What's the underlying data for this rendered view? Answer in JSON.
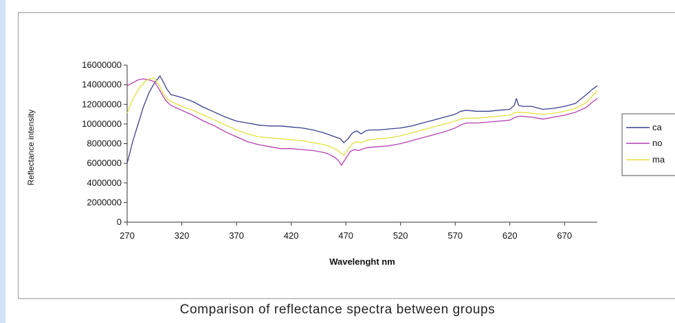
{
  "caption": "Comparison of reflectance spectra between groups",
  "chart_data": {
    "type": "line",
    "title": "",
    "xlabel": "Wavelenght nm",
    "ylabel": "Reflectance intensity",
    "xlim": [
      270,
      700
    ],
    "ylim": [
      0,
      16000000
    ],
    "x_ticks": [
      "270",
      "320",
      "370",
      "420",
      "470",
      "520",
      "570",
      "620",
      "670"
    ],
    "y_ticks": [
      "0",
      "2000000",
      "4000000",
      "6000000",
      "8000000",
      "10000000",
      "12000000",
      "14000000",
      "16000000"
    ],
    "grid": false,
    "legend": "right",
    "series": [
      {
        "name": "ca",
        "color": "#3b3f8c",
        "points": [
          [
            270,
            6000000
          ],
          [
            275,
            8200000
          ],
          [
            280,
            10000000
          ],
          [
            285,
            11800000
          ],
          [
            290,
            13200000
          ],
          [
            295,
            14200000
          ],
          [
            300,
            14900000
          ],
          [
            303,
            14300000
          ],
          [
            306,
            13600000
          ],
          [
            310,
            13000000
          ],
          [
            320,
            12700000
          ],
          [
            330,
            12300000
          ],
          [
            340,
            11700000
          ],
          [
            350,
            11200000
          ],
          [
            360,
            10700000
          ],
          [
            370,
            10300000
          ],
          [
            380,
            10100000
          ],
          [
            390,
            9900000
          ],
          [
            400,
            9800000
          ],
          [
            410,
            9800000
          ],
          [
            420,
            9700000
          ],
          [
            430,
            9600000
          ],
          [
            440,
            9400000
          ],
          [
            450,
            9100000
          ],
          [
            455,
            8900000
          ],
          [
            460,
            8700000
          ],
          [
            465,
            8500000
          ],
          [
            468,
            8100000
          ],
          [
            472,
            8500000
          ],
          [
            476,
            9100000
          ],
          [
            480,
            9300000
          ],
          [
            484,
            9000000
          ],
          [
            488,
            9300000
          ],
          [
            492,
            9400000
          ],
          [
            500,
            9400000
          ],
          [
            510,
            9500000
          ],
          [
            520,
            9600000
          ],
          [
            530,
            9800000
          ],
          [
            540,
            10100000
          ],
          [
            550,
            10400000
          ],
          [
            560,
            10700000
          ],
          [
            570,
            11000000
          ],
          [
            575,
            11300000
          ],
          [
            580,
            11400000
          ],
          [
            590,
            11300000
          ],
          [
            600,
            11300000
          ],
          [
            610,
            11400000
          ],
          [
            620,
            11500000
          ],
          [
            624,
            11900000
          ],
          [
            626,
            12600000
          ],
          [
            628,
            11900000
          ],
          [
            632,
            11800000
          ],
          [
            640,
            11800000
          ],
          [
            650,
            11500000
          ],
          [
            660,
            11600000
          ],
          [
            670,
            11800000
          ],
          [
            680,
            12100000
          ],
          [
            690,
            13000000
          ],
          [
            695,
            13500000
          ],
          [
            700,
            13900000
          ]
        ]
      },
      {
        "name": "no",
        "color": "#b43fb0",
        "points": [
          [
            270,
            13900000
          ],
          [
            275,
            14200000
          ],
          [
            280,
            14500000
          ],
          [
            285,
            14600000
          ],
          [
            290,
            14500000
          ],
          [
            295,
            14300000
          ],
          [
            300,
            13400000
          ],
          [
            303,
            12800000
          ],
          [
            306,
            12300000
          ],
          [
            310,
            11900000
          ],
          [
            320,
            11400000
          ],
          [
            330,
            10900000
          ],
          [
            340,
            10300000
          ],
          [
            350,
            9800000
          ],
          [
            360,
            9200000
          ],
          [
            370,
            8700000
          ],
          [
            380,
            8200000
          ],
          [
            390,
            7900000
          ],
          [
            400,
            7700000
          ],
          [
            410,
            7500000
          ],
          [
            420,
            7500000
          ],
          [
            430,
            7400000
          ],
          [
            440,
            7300000
          ],
          [
            450,
            7100000
          ],
          [
            455,
            6900000
          ],
          [
            460,
            6600000
          ],
          [
            463,
            6300000
          ],
          [
            466,
            5800000
          ],
          [
            470,
            6500000
          ],
          [
            474,
            7200000
          ],
          [
            478,
            7400000
          ],
          [
            482,
            7300000
          ],
          [
            486,
            7500000
          ],
          [
            490,
            7600000
          ],
          [
            500,
            7700000
          ],
          [
            510,
            7800000
          ],
          [
            520,
            8000000
          ],
          [
            530,
            8300000
          ],
          [
            540,
            8600000
          ],
          [
            550,
            8900000
          ],
          [
            560,
            9200000
          ],
          [
            570,
            9600000
          ],
          [
            575,
            9900000
          ],
          [
            580,
            10100000
          ],
          [
            590,
            10100000
          ],
          [
            600,
            10200000
          ],
          [
            610,
            10300000
          ],
          [
            620,
            10400000
          ],
          [
            625,
            10700000
          ],
          [
            630,
            10800000
          ],
          [
            640,
            10700000
          ],
          [
            650,
            10500000
          ],
          [
            660,
            10700000
          ],
          [
            670,
            10900000
          ],
          [
            680,
            11200000
          ],
          [
            690,
            11700000
          ],
          [
            695,
            12200000
          ],
          [
            700,
            12600000
          ]
        ]
      },
      {
        "name": "ma",
        "color": "#e3e03a",
        "points": [
          [
            270,
            11100000
          ],
          [
            275,
            12500000
          ],
          [
            280,
            13500000
          ],
          [
            285,
            14200000
          ],
          [
            290,
            14600000
          ],
          [
            295,
            14700000
          ],
          [
            300,
            13800000
          ],
          [
            303,
            13100000
          ],
          [
            306,
            12600000
          ],
          [
            310,
            12300000
          ],
          [
            320,
            11800000
          ],
          [
            330,
            11400000
          ],
          [
            340,
            10900000
          ],
          [
            350,
            10400000
          ],
          [
            360,
            9900000
          ],
          [
            370,
            9400000
          ],
          [
            380,
            9000000
          ],
          [
            390,
            8700000
          ],
          [
            400,
            8600000
          ],
          [
            410,
            8500000
          ],
          [
            420,
            8400000
          ],
          [
            430,
            8300000
          ],
          [
            440,
            8100000
          ],
          [
            450,
            7900000
          ],
          [
            455,
            7700000
          ],
          [
            460,
            7500000
          ],
          [
            465,
            7100000
          ],
          [
            468,
            6800000
          ],
          [
            472,
            7400000
          ],
          [
            476,
            8000000
          ],
          [
            480,
            8200000
          ],
          [
            484,
            8100000
          ],
          [
            488,
            8300000
          ],
          [
            492,
            8400000
          ],
          [
            500,
            8500000
          ],
          [
            510,
            8600000
          ],
          [
            520,
            8800000
          ],
          [
            530,
            9100000
          ],
          [
            540,
            9400000
          ],
          [
            550,
            9700000
          ],
          [
            560,
            10000000
          ],
          [
            570,
            10300000
          ],
          [
            575,
            10500000
          ],
          [
            580,
            10600000
          ],
          [
            590,
            10600000
          ],
          [
            600,
            10700000
          ],
          [
            610,
            10800000
          ],
          [
            620,
            10900000
          ],
          [
            625,
            11200000
          ],
          [
            630,
            11200000
          ],
          [
            640,
            11100000
          ],
          [
            650,
            11000000
          ],
          [
            660,
            11100000
          ],
          [
            670,
            11300000
          ],
          [
            680,
            11600000
          ],
          [
            690,
            12200000
          ],
          [
            695,
            12800000
          ],
          [
            700,
            13400000
          ]
        ]
      }
    ]
  }
}
